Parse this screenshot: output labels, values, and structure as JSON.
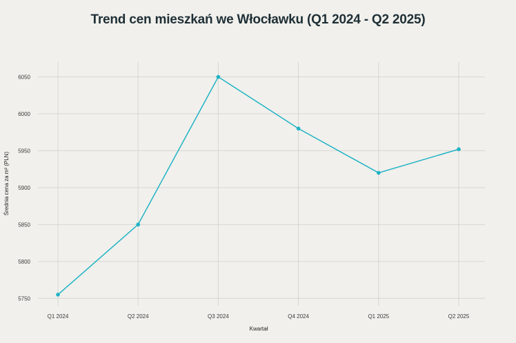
{
  "chart_data": {
    "type": "line",
    "title": "Trend cen mieszkań we Włocławku (Q1 2024 - Q2 2025)",
    "xlabel": "Kwartał",
    "ylabel": "Średnia cena za m² (PLN)",
    "categories": [
      "Q1 2024",
      "Q2 2024",
      "Q3 2024",
      "Q4 2024",
      "Q1 2025",
      "Q2 2025"
    ],
    "series": [
      {
        "values": [
          5755,
          5850,
          6050,
          5980,
          5920,
          5952
        ]
      }
    ],
    "ylim": [
      5740,
      6070
    ],
    "yticks": [
      5750,
      5800,
      5850,
      5900,
      5950,
      6000,
      6050
    ],
    "grid": true,
    "color": "#1fb3c5"
  }
}
